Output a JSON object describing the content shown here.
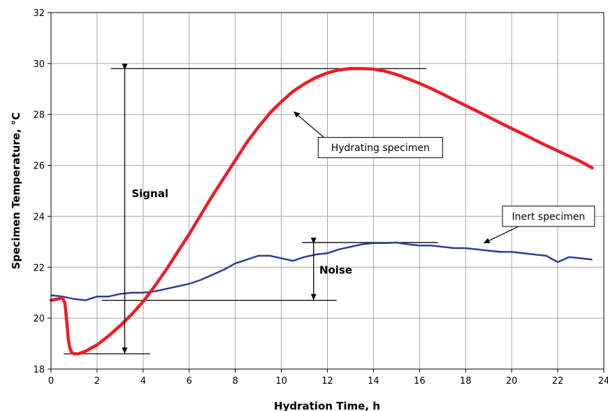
{
  "chart_data": {
    "type": "line",
    "title": "",
    "xlabel": "Hydration Time, h",
    "ylabel": "Specimen Temperature, °C",
    "xlim": [
      0,
      24
    ],
    "ylim": [
      18,
      32
    ],
    "x_ticks": [
      0,
      2,
      4,
      6,
      8,
      10,
      12,
      14,
      16,
      18,
      20,
      22,
      24
    ],
    "y_ticks": [
      18,
      20,
      22,
      24,
      26,
      28,
      30,
      32
    ],
    "x_tick_labels": [
      "0",
      "2",
      "4",
      "6",
      "8",
      "10",
      "12",
      "14",
      "16",
      "18",
      "20",
      "22",
      "24"
    ],
    "y_tick_labels": [
      "18",
      "20",
      "22",
      "24",
      "26",
      "28",
      "30",
      "32"
    ],
    "grid": true,
    "colors": {
      "hydrating": "#ee1c25",
      "inert": "#2e3d98",
      "grid": "#a6a6a6",
      "background": "#ffffff"
    },
    "series": [
      {
        "key": "hydrating",
        "x": [
          0,
          0.3,
          0.5,
          0.6,
          0.65,
          0.7,
          0.75,
          0.8,
          0.85,
          0.9,
          1.0,
          1.2,
          1.5,
          2.0,
          2.5,
          3.0,
          3.5,
          4.0,
          4.5,
          5.0,
          5.5,
          6.0,
          6.5,
          7.0,
          7.5,
          8.0,
          8.5,
          9.0,
          9.5,
          10.0,
          10.5,
          11.0,
          11.5,
          12.0,
          12.5,
          13.0,
          13.5,
          14.0,
          14.5,
          15.0,
          15.5,
          16.0,
          16.5,
          17.0,
          17.5,
          18.0,
          18.5,
          19.0,
          19.5,
          20.0,
          20.5,
          21.0,
          21.5,
          22.0,
          22.5,
          23.0,
          23.5
        ],
        "y": [
          20.7,
          20.75,
          20.8,
          20.6,
          20.2,
          19.7,
          19.2,
          18.9,
          18.75,
          18.65,
          18.6,
          18.6,
          18.7,
          18.95,
          19.3,
          19.7,
          20.15,
          20.65,
          21.25,
          21.9,
          22.6,
          23.3,
          24.05,
          24.8,
          25.5,
          26.2,
          26.9,
          27.5,
          28.05,
          28.5,
          28.9,
          29.2,
          29.45,
          29.63,
          29.75,
          29.8,
          29.8,
          29.78,
          29.7,
          29.57,
          29.4,
          29.22,
          29.02,
          28.8,
          28.57,
          28.35,
          28.13,
          27.9,
          27.67,
          27.45,
          27.23,
          27.0,
          26.78,
          26.57,
          26.36,
          26.15,
          25.9
        ]
      },
      {
        "key": "inert",
        "x": [
          0,
          0.5,
          1.0,
          1.5,
          2.0,
          2.5,
          3.0,
          3.5,
          4.0,
          4.5,
          5.0,
          5.5,
          6.0,
          6.5,
          7.0,
          7.5,
          8.0,
          8.5,
          9.0,
          9.5,
          10.0,
          10.5,
          11.0,
          11.5,
          12.0,
          12.5,
          13.0,
          13.5,
          14.0,
          14.5,
          15.0,
          15.5,
          16.0,
          16.5,
          17.0,
          17.5,
          18.0,
          18.5,
          19.0,
          19.5,
          20.0,
          20.5,
          21.0,
          21.5,
          22.0,
          22.5,
          23.0,
          23.5
        ],
        "y": [
          20.9,
          20.85,
          20.75,
          20.7,
          20.85,
          20.85,
          20.95,
          21.0,
          21.0,
          21.05,
          21.15,
          21.25,
          21.35,
          21.5,
          21.7,
          21.9,
          22.15,
          22.3,
          22.45,
          22.45,
          22.35,
          22.25,
          22.4,
          22.5,
          22.55,
          22.7,
          22.8,
          22.9,
          22.95,
          22.95,
          22.97,
          22.9,
          22.85,
          22.85,
          22.8,
          22.75,
          22.75,
          22.7,
          22.65,
          22.6,
          22.6,
          22.55,
          22.5,
          22.45,
          22.2,
          22.4,
          22.35,
          22.3
        ]
      }
    ],
    "annotations": {
      "signal_label": "Signal",
      "noise_label": "Noise",
      "hydrating_callout": "Hydrating specimen",
      "inert_callout": "Inert specimen"
    }
  }
}
